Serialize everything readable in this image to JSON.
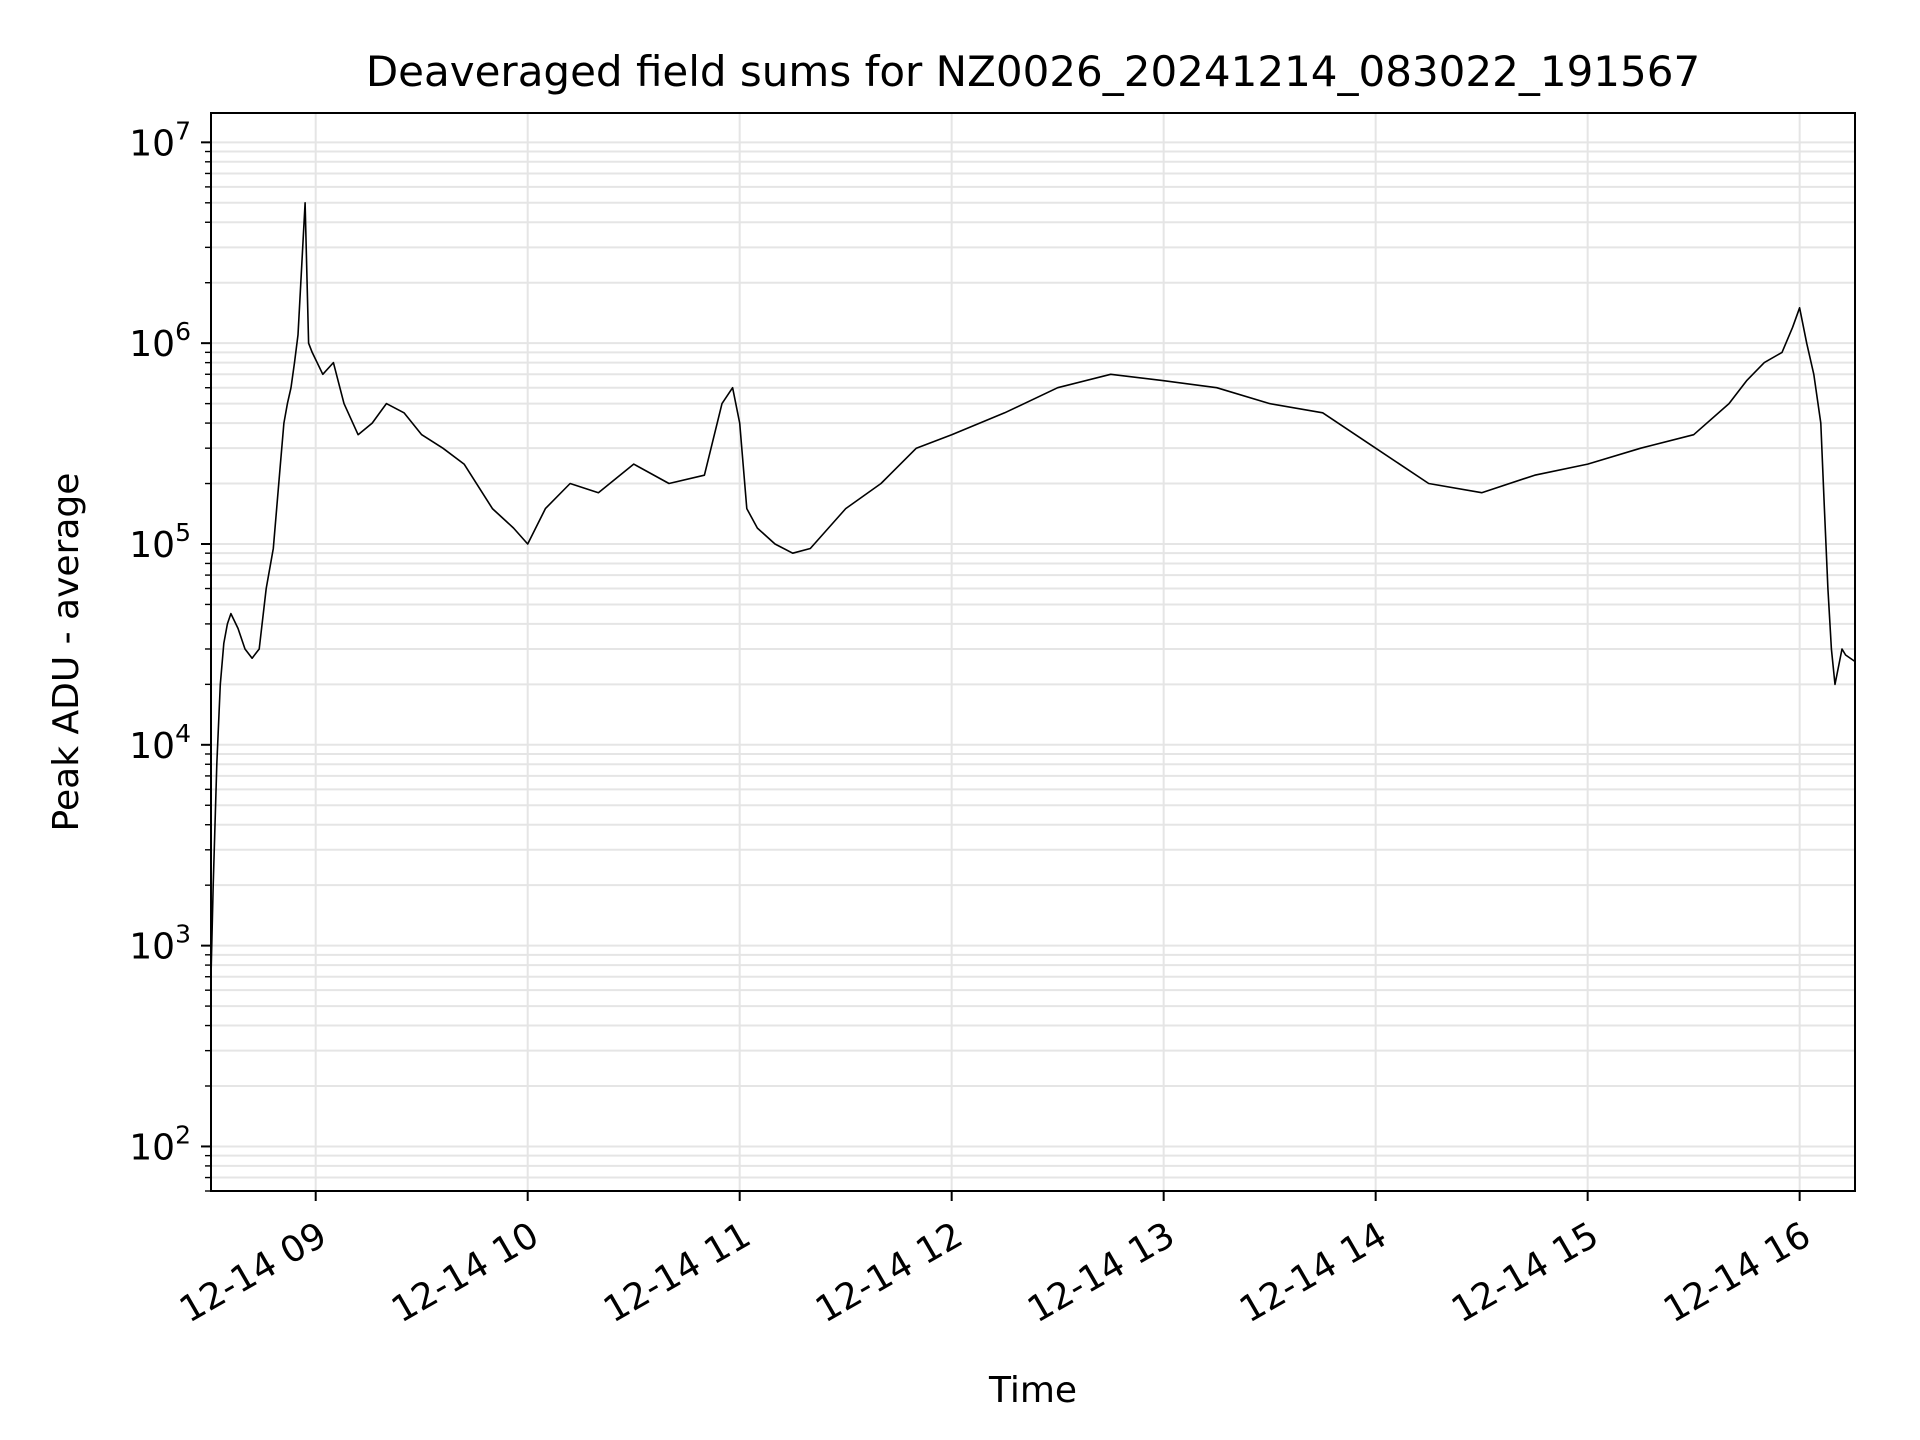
{
  "chart_data": {
    "type": "line",
    "title": "Deaveraged field sums for NZ0026_20241214_083022_191567",
    "xlabel": "Time",
    "ylabel": "Peak ADU - average",
    "yscale": "log",
    "ylim": [
      60,
      14000000
    ],
    "xlim": [
      "2024-12-14 08:30:22",
      "2024-12-14 16:15:40"
    ],
    "grid": true,
    "line_color": "#000000",
    "grid_color": "#e5e5e5",
    "x_ticks": [
      {
        "label": "12-14 09",
        "value": "2024-12-14 09:00"
      },
      {
        "label": "12-14 10",
        "value": "2024-12-14 10:00"
      },
      {
        "label": "12-14 11",
        "value": "2024-12-14 11:00"
      },
      {
        "label": "12-14 12",
        "value": "2024-12-14 12:00"
      },
      {
        "label": "12-14 13",
        "value": "2024-12-14 13:00"
      },
      {
        "label": "12-14 14",
        "value": "2024-12-14 14:00"
      },
      {
        "label": "12-14 15",
        "value": "2024-12-14 15:00"
      },
      {
        "label": "12-14 16",
        "value": "2024-12-14 16:00"
      }
    ],
    "y_ticks": [
      {
        "base": "10",
        "exp": "2",
        "value": 100
      },
      {
        "base": "10",
        "exp": "3",
        "value": 1000
      },
      {
        "base": "10",
        "exp": "4",
        "value": 10000
      },
      {
        "base": "10",
        "exp": "5",
        "value": 100000
      },
      {
        "base": "10",
        "exp": "6",
        "value": 1000000
      },
      {
        "base": "10",
        "exp": "7",
        "value": 10000000
      }
    ],
    "series": [
      {
        "x": [
          "2024-12-14 08:30:22",
          "2024-12-14 08:31:00",
          "2024-12-14 08:32:00",
          "2024-12-14 08:33:00",
          "2024-12-14 08:34:00",
          "2024-12-14 08:35:00",
          "2024-12-14 08:36:00",
          "2024-12-14 08:38:00",
          "2024-12-14 08:40:00",
          "2024-12-14 08:42:00",
          "2024-12-14 08:44:00",
          "2024-12-14 08:46:00",
          "2024-12-14 08:48:00",
          "2024-12-14 08:50:00",
          "2024-12-14 08:51:00",
          "2024-12-14 08:52:00",
          "2024-12-14 08:53:00",
          "2024-12-14 08:54:00",
          "2024-12-14 08:55:00",
          "2024-12-14 08:57:00",
          "2024-12-14 08:58:00",
          "2024-12-14 08:59:00",
          "2024-12-14 09:02:00",
          "2024-12-14 09:05:00",
          "2024-12-14 09:08:00",
          "2024-12-14 09:12:00",
          "2024-12-14 09:16:00",
          "2024-12-14 09:20:00",
          "2024-12-14 09:25:00",
          "2024-12-14 09:30:00",
          "2024-12-14 09:36:00",
          "2024-12-14 09:42:00",
          "2024-12-14 09:50:00",
          "2024-12-14 09:56:00",
          "2024-12-14 10:00:00",
          "2024-12-14 10:05:00",
          "2024-12-14 10:12:00",
          "2024-12-14 10:20:00",
          "2024-12-14 10:30:00",
          "2024-12-14 10:40:00",
          "2024-12-14 10:50:00",
          "2024-12-14 10:55:00",
          "2024-12-14 10:58:00",
          "2024-12-14 11:00:00",
          "2024-12-14 11:02:00",
          "2024-12-14 11:05:00",
          "2024-12-14 11:10:00",
          "2024-12-14 11:15:00",
          "2024-12-14 11:20:00",
          "2024-12-14 11:30:00",
          "2024-12-14 11:40:00",
          "2024-12-14 11:50:00",
          "2024-12-14 12:00:00",
          "2024-12-14 12:15:00",
          "2024-12-14 12:30:00",
          "2024-12-14 12:45:00",
          "2024-12-14 13:00:00",
          "2024-12-14 13:15:00",
          "2024-12-14 13:30:00",
          "2024-12-14 13:45:00",
          "2024-12-14 14:00:00",
          "2024-12-14 14:15:00",
          "2024-12-14 14:30:00",
          "2024-12-14 14:45:00",
          "2024-12-14 15:00:00",
          "2024-12-14 15:15:00",
          "2024-12-14 15:30:00",
          "2024-12-14 15:40:00",
          "2024-12-14 15:45:00",
          "2024-12-14 15:50:00",
          "2024-12-14 15:55:00",
          "2024-12-14 15:58:00",
          "2024-12-14 16:00:00",
          "2024-12-14 16:02:00",
          "2024-12-14 16:04:00",
          "2024-12-14 16:06:00",
          "2024-12-14 16:07:00",
          "2024-12-14 16:08:00",
          "2024-12-14 16:09:00",
          "2024-12-14 16:10:00",
          "2024-12-14 16:12:00",
          "2024-12-14 16:13:00",
          "2024-12-14 16:15:40"
        ],
        "y": [
          700,
          2000,
          8000,
          20000,
          32000,
          40000,
          45000,
          38000,
          30000,
          27000,
          30000,
          60000,
          95000,
          250000,
          400000,
          500000,
          600000,
          800000,
          1100000,
          5000000,
          1000000,
          900000,
          700000,
          800000,
          500000,
          350000,
          400000,
          500000,
          450000,
          350000,
          300000,
          250000,
          150000,
          120000,
          100000,
          150000,
          200000,
          180000,
          250000,
          200000,
          220000,
          500000,
          600000,
          400000,
          150000,
          120000,
          100000,
          90000,
          95000,
          150000,
          200000,
          300000,
          350000,
          450000,
          600000,
          700000,
          650000,
          600000,
          500000,
          450000,
          300000,
          200000,
          180000,
          220000,
          250000,
          300000,
          350000,
          500000,
          650000,
          800000,
          900000,
          1200000,
          1500000,
          1000000,
          700000,
          400000,
          150000,
          60000,
          30000,
          20000,
          30000,
          28000,
          26000
        ]
      }
    ]
  }
}
